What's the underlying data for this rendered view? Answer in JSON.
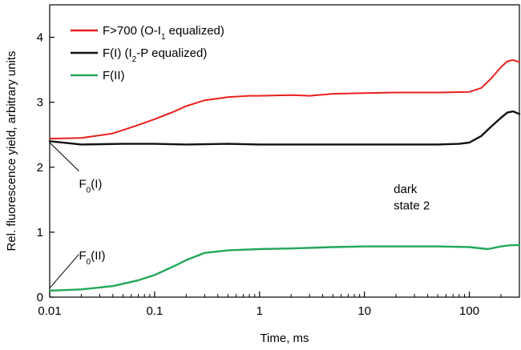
{
  "chart_data": {
    "type": "line",
    "xlabel": "Time, ms",
    "ylabel": "Rel. fluorescence yield, arbitrary units",
    "xscale": "log",
    "xlim": [
      0.01,
      300
    ],
    "ylim": [
      0,
      4.5
    ],
    "xticks": [
      {
        "value": 0.01,
        "label": "0.01"
      },
      {
        "value": 0.1,
        "label": "0.1"
      },
      {
        "value": 1,
        "label": "1"
      },
      {
        "value": 10,
        "label": "10"
      },
      {
        "value": 100,
        "label": "100"
      }
    ],
    "yticks": [
      {
        "value": 0,
        "label": "0"
      },
      {
        "value": 1,
        "label": "1"
      },
      {
        "value": 2,
        "label": "2"
      },
      {
        "value": 3,
        "label": "3"
      },
      {
        "value": 4,
        "label": "4"
      }
    ],
    "grid": false,
    "legend_position": "top-left",
    "series": [
      {
        "name": "F>700 (O-I1 equalized)",
        "legend_main": "F>700 (O-I",
        "legend_sub": "1",
        "legend_tail": " equalized)",
        "color": "#e8201c",
        "points": [
          [
            0.01,
            2.44
          ],
          [
            0.02,
            2.45
          ],
          [
            0.04,
            2.52
          ],
          [
            0.07,
            2.65
          ],
          [
            0.1,
            2.74
          ],
          [
            0.15,
            2.85
          ],
          [
            0.2,
            2.94
          ],
          [
            0.3,
            3.03
          ],
          [
            0.5,
            3.08
          ],
          [
            0.8,
            3.1
          ],
          [
            1,
            3.1
          ],
          [
            2,
            3.11
          ],
          [
            3,
            3.1
          ],
          [
            5,
            3.13
          ],
          [
            10,
            3.14
          ],
          [
            20,
            3.15
          ],
          [
            50,
            3.15
          ],
          [
            100,
            3.16
          ],
          [
            130,
            3.22
          ],
          [
            160,
            3.36
          ],
          [
            200,
            3.54
          ],
          [
            230,
            3.63
          ],
          [
            260,
            3.65
          ],
          [
            300,
            3.62
          ]
        ]
      },
      {
        "name": "F(I) (I2-P equalized)",
        "legend_main": "F(I) (I",
        "legend_sub": "2",
        "legend_tail": "-P equalized)",
        "color": "#111111",
        "points": [
          [
            0.01,
            2.4
          ],
          [
            0.02,
            2.35
          ],
          [
            0.05,
            2.36
          ],
          [
            0.1,
            2.36
          ],
          [
            0.2,
            2.35
          ],
          [
            0.5,
            2.36
          ],
          [
            1,
            2.35
          ],
          [
            2,
            2.35
          ],
          [
            5,
            2.35
          ],
          [
            10,
            2.35
          ],
          [
            20,
            2.35
          ],
          [
            50,
            2.35
          ],
          [
            80,
            2.36
          ],
          [
            100,
            2.38
          ],
          [
            130,
            2.48
          ],
          [
            160,
            2.62
          ],
          [
            200,
            2.76
          ],
          [
            230,
            2.84
          ],
          [
            260,
            2.86
          ],
          [
            300,
            2.82
          ]
        ]
      },
      {
        "name": "F(II)",
        "legend_main": "F(II)",
        "legend_sub": "",
        "legend_tail": "",
        "color": "#22a85a",
        "points": [
          [
            0.01,
            0.1
          ],
          [
            0.02,
            0.12
          ],
          [
            0.04,
            0.17
          ],
          [
            0.07,
            0.26
          ],
          [
            0.1,
            0.34
          ],
          [
            0.15,
            0.47
          ],
          [
            0.2,
            0.57
          ],
          [
            0.3,
            0.68
          ],
          [
            0.5,
            0.72
          ],
          [
            1,
            0.74
          ],
          [
            2,
            0.75
          ],
          [
            5,
            0.77
          ],
          [
            10,
            0.78
          ],
          [
            20,
            0.78
          ],
          [
            50,
            0.78
          ],
          [
            100,
            0.77
          ],
          [
            150,
            0.74
          ],
          [
            200,
            0.78
          ],
          [
            250,
            0.8
          ],
          [
            300,
            0.8
          ]
        ]
      }
    ],
    "annotations": [
      {
        "text": "F",
        "sub": "0",
        "suffix": "(I)",
        "label_x": 0.019,
        "label_y": 1.68,
        "pointer_from": [
          0.019,
          1.94
        ],
        "pointer_to": [
          0.01,
          2.38
        ]
      },
      {
        "text": "F",
        "sub": "0",
        "suffix": "(II)",
        "label_x": 0.019,
        "label_y": 0.58,
        "pointer_from": [
          0.019,
          0.66
        ],
        "pointer_to": [
          0.01,
          0.14
        ]
      },
      {
        "text": "dark",
        "label_x": 19,
        "label_y": 1.6
      },
      {
        "text": "state 2",
        "label_x": 19,
        "label_y": 1.35
      }
    ]
  }
}
